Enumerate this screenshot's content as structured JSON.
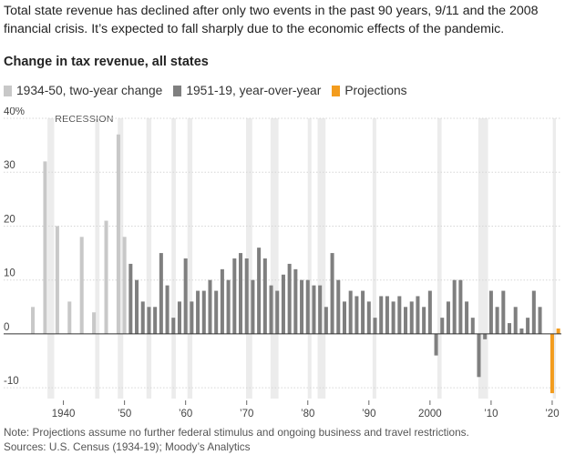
{
  "intro": "Total state revenue has declined after only two events in the past 90 years, 9/11 and the 2008 financial crisis. It’s expected to fall sharply due to the economic effects of the pandemic.",
  "note": "Note: Projections assume no further federal stimulus and ongoing business and travel restrictions.",
  "sources": "Sources: U.S. Census (1934-19); Moody’s Analytics",
  "colors": {
    "early": "#c8c8c8",
    "modern": "#7f7f7f",
    "projection": "#f39c1e",
    "recession": "#ececec",
    "gridline": "#d6d6d6",
    "zero_line": "#333333"
  },
  "chart_data": {
    "type": "bar",
    "title": "Change in tax revenue, all states",
    "recession_label": "RECESSION",
    "ylim": [
      -12,
      40
    ],
    "yticks": [
      -10,
      0,
      10,
      20,
      30,
      40
    ],
    "ytick_labels": [
      "-10",
      "0",
      "10",
      "20",
      "30",
      "40%"
    ],
    "xlim": [
      1933.5,
      2021.5
    ],
    "xticks": [
      1940,
      1950,
      1960,
      1970,
      1980,
      1990,
      2000,
      2010,
      2020
    ],
    "xtick_labels": [
      "1940",
      "’50",
      "’60",
      "’70",
      "’80",
      "’90",
      "2000",
      "’10",
      "’20"
    ],
    "recessions": [
      [
        1937.4,
        1938.5
      ],
      [
        1945.2,
        1945.9
      ],
      [
        1948.9,
        1949.8
      ],
      [
        1953.6,
        1954.4
      ],
      [
        1957.7,
        1958.4
      ],
      [
        1960.3,
        1961.1
      ],
      [
        1969.9,
        1970.9
      ],
      [
        1973.9,
        1975.2
      ],
      [
        1980.0,
        1980.6
      ],
      [
        1981.6,
        1982.9
      ],
      [
        1990.6,
        1991.2
      ],
      [
        2001.2,
        2001.9
      ],
      [
        2007.9,
        2009.5
      ],
      [
        2020.1,
        2020.6
      ]
    ],
    "series": [
      {
        "name": "1934-50, two-year change",
        "color_key": "early",
        "x": [
          1935,
          1937,
          1939,
          1941,
          1943,
          1945,
          1947,
          1949,
          1950
        ],
        "values": [
          5,
          32,
          20,
          6,
          18,
          4,
          21,
          37,
          18
        ]
      },
      {
        "name": "1951-19, year-over-year",
        "color_key": "modern",
        "x": [
          1951,
          1952,
          1953,
          1954,
          1955,
          1956,
          1957,
          1958,
          1959,
          1960,
          1961,
          1962,
          1963,
          1964,
          1965,
          1966,
          1967,
          1968,
          1969,
          1970,
          1971,
          1972,
          1973,
          1974,
          1975,
          1976,
          1977,
          1978,
          1979,
          1980,
          1981,
          1982,
          1983,
          1984,
          1985,
          1986,
          1987,
          1988,
          1989,
          1990,
          1991,
          1992,
          1993,
          1994,
          1995,
          1996,
          1997,
          1998,
          1999,
          2000,
          2001,
          2002,
          2003,
          2004,
          2005,
          2006,
          2007,
          2008,
          2009,
          2010,
          2011,
          2012,
          2013,
          2014,
          2015,
          2016,
          2017,
          2018,
          2019
        ],
        "values": [
          13,
          10,
          6,
          5,
          5,
          15,
          9,
          3,
          6,
          14,
          6,
          8,
          8,
          10,
          8,
          12,
          10,
          14,
          15,
          14,
          10,
          16,
          14,
          9,
          8,
          11,
          13,
          12,
          10,
          10,
          9,
          9,
          5,
          15,
          10,
          6,
          8,
          7,
          8,
          6,
          3,
          7,
          7,
          6,
          7,
          5,
          6,
          7,
          5,
          8,
          -4,
          3,
          6,
          10,
          10,
          6,
          3,
          -8,
          -1,
          8,
          5,
          8,
          2,
          5,
          1,
          3,
          8,
          5,
          0
        ]
      },
      {
        "name": "Projections",
        "color_key": "projection",
        "x": [
          2020,
          2021
        ],
        "values": [
          -11,
          1
        ]
      }
    ]
  }
}
